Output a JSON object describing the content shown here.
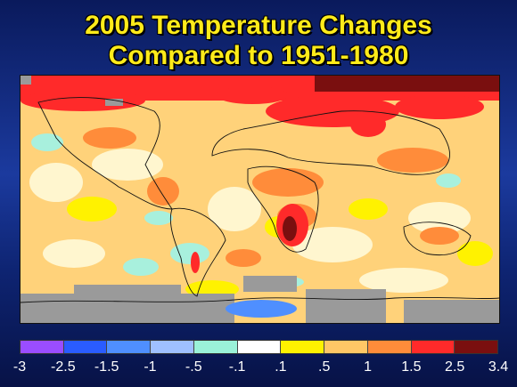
{
  "title": {
    "line1": "2005 Temperature Changes",
    "line2": "Compared to 1951-1980"
  },
  "map": {
    "type": "global temperature anomaly map",
    "no_data_color": "#9a9a9a",
    "features": [
      "arctic-warm-band",
      "siberia-hotspot",
      "southern-africa-hotspot",
      "antarctica-partial-data"
    ]
  },
  "legend": {
    "colors": [
      "#9a4dff",
      "#2a5cff",
      "#4f8fff",
      "#9fc0ff",
      "#9af2d8",
      "#ffffff",
      "#fff200",
      "#ffc766",
      "#ff8c3a",
      "#ff2a2a",
      "#7a0f0f"
    ],
    "ticks": [
      "-3",
      "-2.5",
      "-1.5",
      "-1",
      "-.5",
      "-.1",
      ".1",
      ".5",
      "1",
      "1.5",
      "2.5",
      "3.4"
    ]
  }
}
